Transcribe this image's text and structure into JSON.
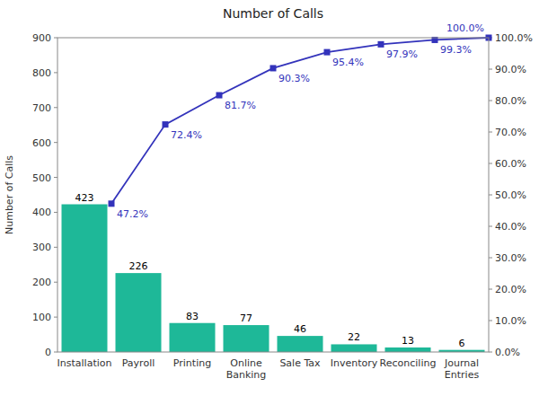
{
  "chart_data": {
    "type": "bar",
    "title": "Number of Calls",
    "categories": [
      "Installation",
      "Payroll",
      "Printing",
      "Online\nBanking",
      "Sale Tax",
      "Inventory",
      "Reconciling",
      "Journal\nEntries"
    ],
    "series": [
      {
        "type": "bar",
        "color": "#1EB898",
        "values": [
          423,
          226,
          83,
          77,
          46,
          22,
          13,
          6
        ],
        "data_labels": true
      },
      {
        "type": "line",
        "axis": "y2",
        "color": "#3333BB",
        "marker": "square",
        "values": [
          47.2,
          72.4,
          81.7,
          90.3,
          95.4,
          97.9,
          99.3,
          100.0
        ],
        "value_labels": [
          "47.2%",
          "72.4%",
          "81.7%",
          "90.3%",
          "95.4%",
          "97.9%",
          "99.3%",
          "100.0%"
        ],
        "data_labels": true
      }
    ],
    "ylabel": "Number of Calls",
    "ylim": [
      0,
      900
    ],
    "yticks": [
      0,
      100,
      200,
      300,
      400,
      500,
      600,
      700,
      800,
      900
    ],
    "y2lim": [
      0.0,
      100.0
    ],
    "y2ticks": [
      {
        "value": 0.0,
        "label": "0.0%"
      },
      {
        "value": 10.0,
        "label": "10.0%"
      },
      {
        "value": 20.0,
        "label": "20.0%"
      },
      {
        "value": 30.0,
        "label": "30.0%"
      },
      {
        "value": 40.0,
        "label": "40.0%"
      },
      {
        "value": 50.0,
        "label": "50.0%"
      },
      {
        "value": 60.0,
        "label": "60.0%"
      },
      {
        "value": 70.0,
        "label": "70.0%"
      },
      {
        "value": 80.0,
        "label": "80.0%"
      },
      {
        "value": 90.0,
        "label": "90.0%"
      },
      {
        "value": 100.0,
        "label": "100.0%"
      }
    ],
    "grid": false
  }
}
